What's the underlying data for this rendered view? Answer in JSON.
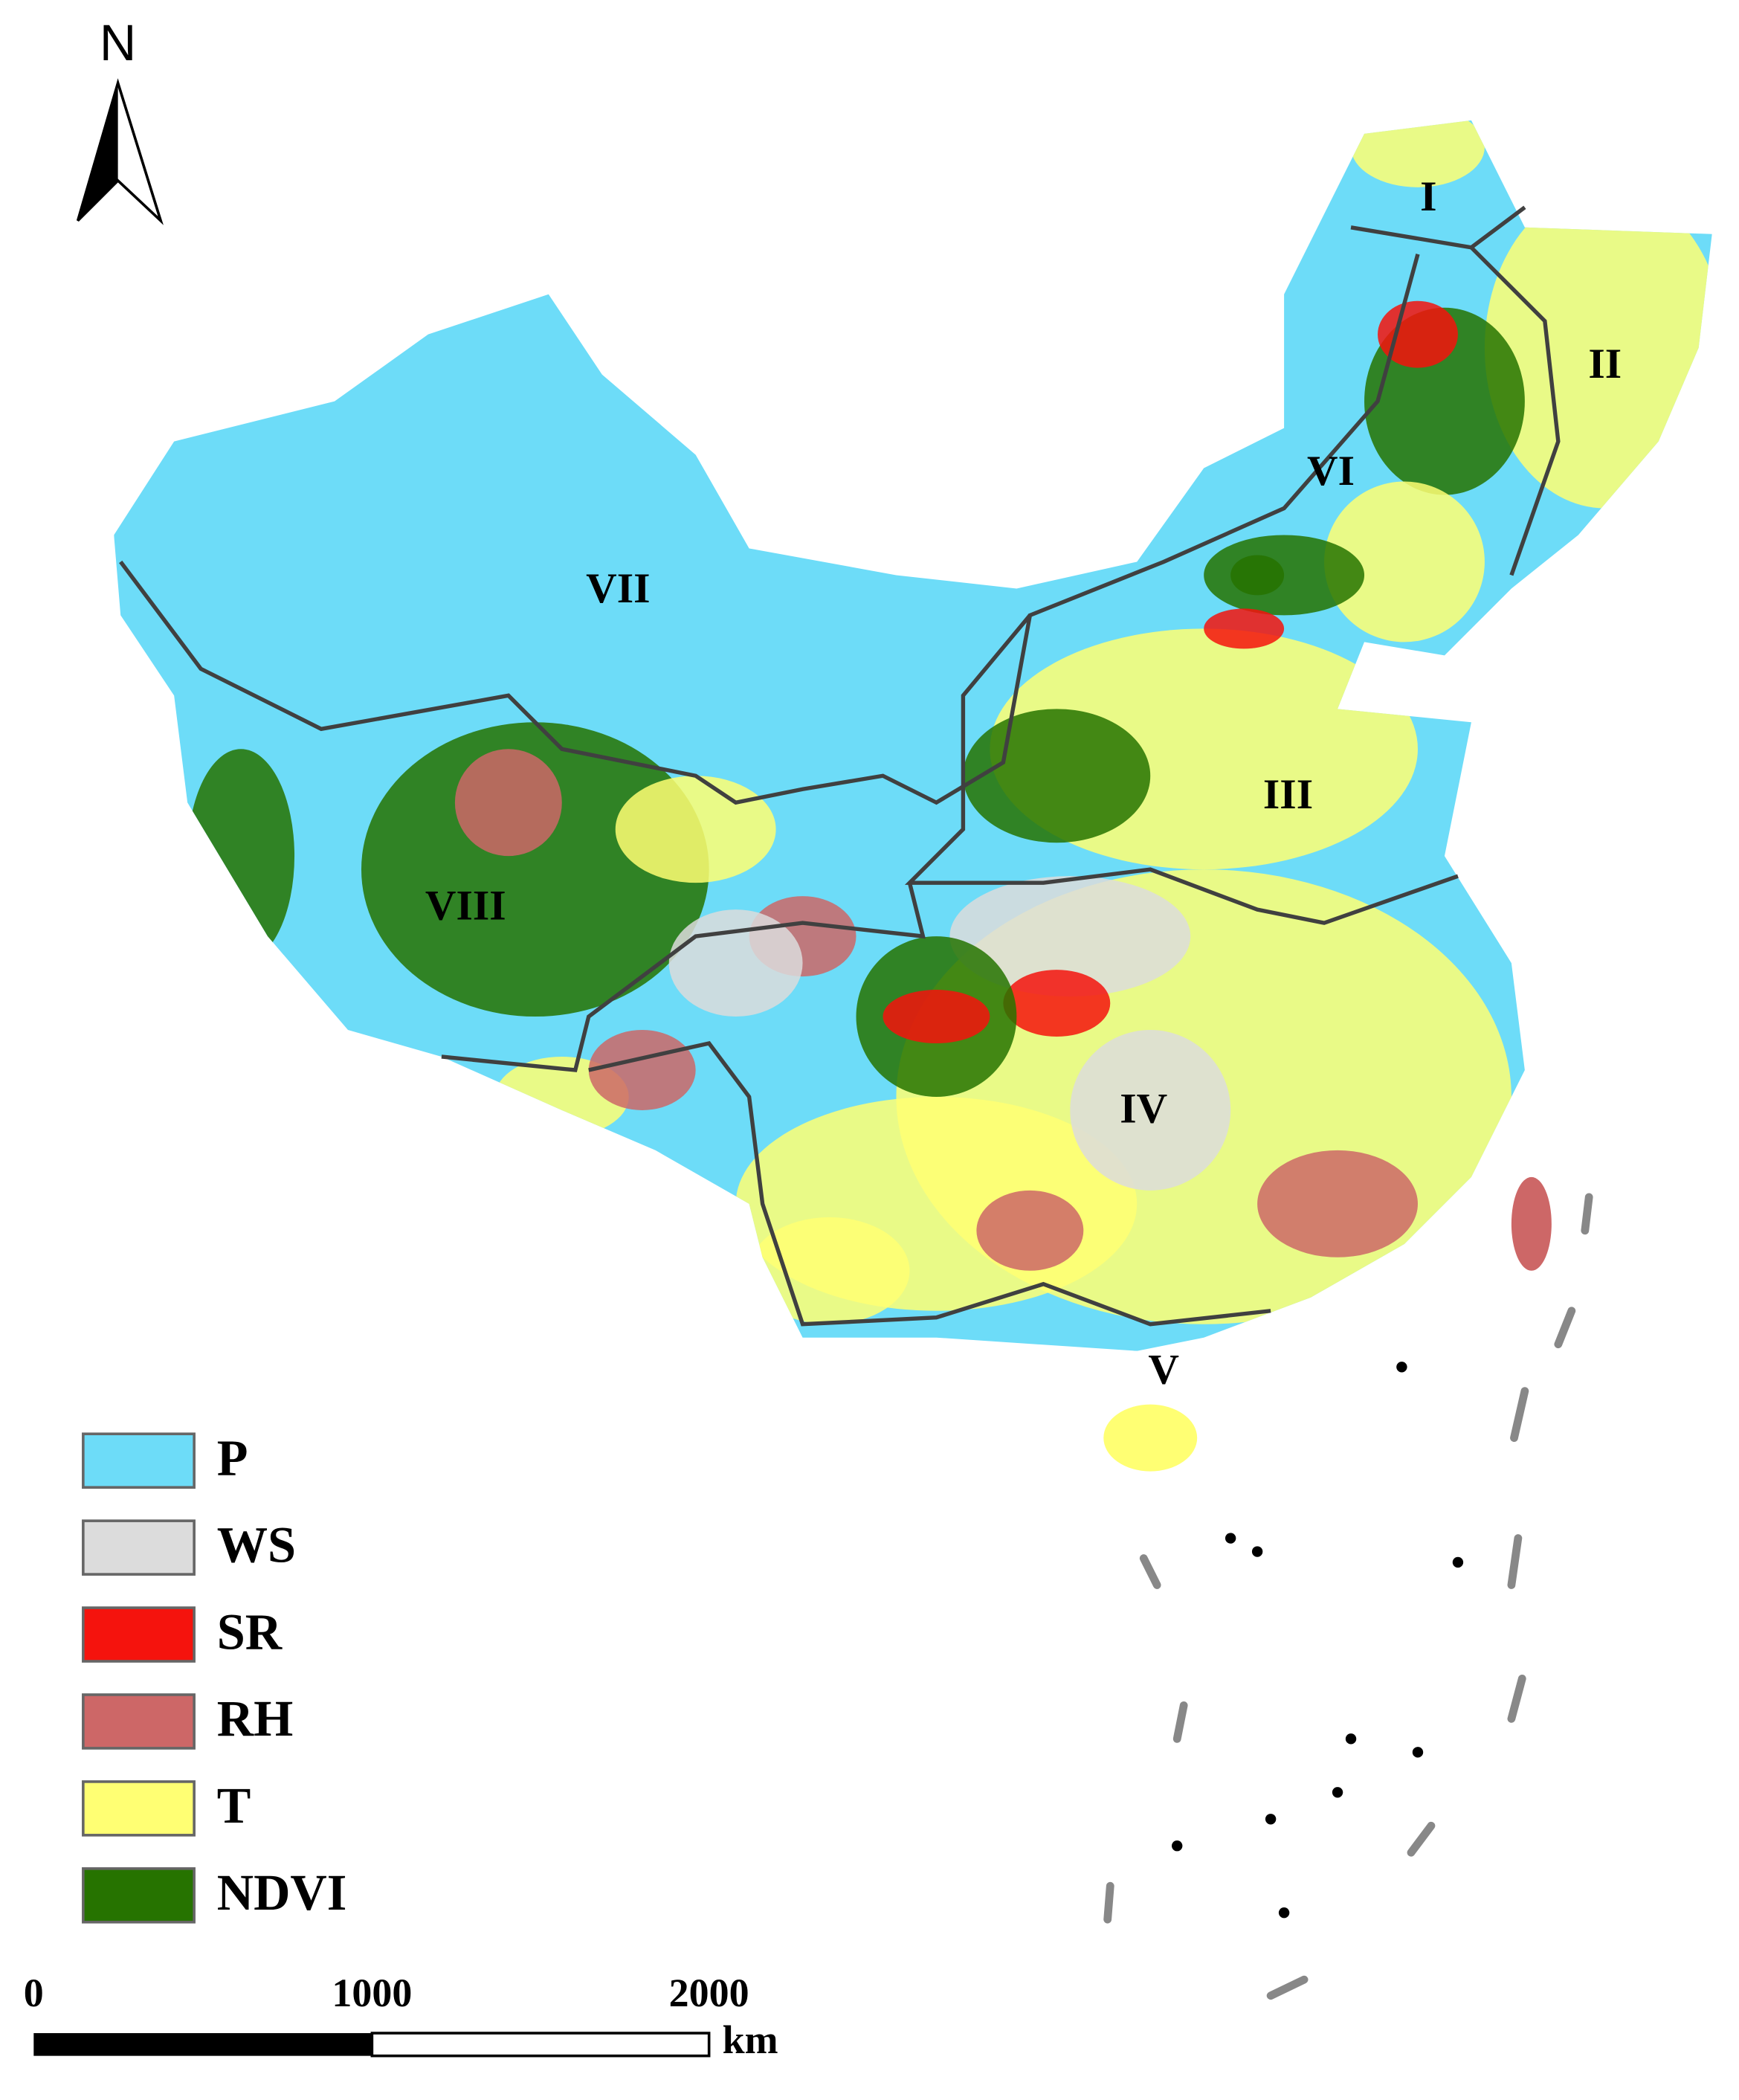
{
  "north": "N",
  "regions": [
    {
      "label": "I"
    },
    {
      "label": "II"
    },
    {
      "label": "III"
    },
    {
      "label": "IV"
    },
    {
      "label": "V"
    },
    {
      "label": "VI"
    },
    {
      "label": "VII"
    },
    {
      "label": "VIII"
    }
  ],
  "legend": [
    {
      "label": "P",
      "color": "#6ddcf8"
    },
    {
      "label": "WS",
      "color": "#dcdcdc"
    },
    {
      "label": "SR",
      "color": "#f5130d"
    },
    {
      "label": "RH",
      "color": "#cd6767"
    },
    {
      "label": "T",
      "color": "#ffff73"
    },
    {
      "label": "NDVI",
      "color": "#267300"
    }
  ],
  "scale_bar": {
    "ticks": [
      "0",
      "1000",
      "2000"
    ],
    "unit": "km"
  }
}
